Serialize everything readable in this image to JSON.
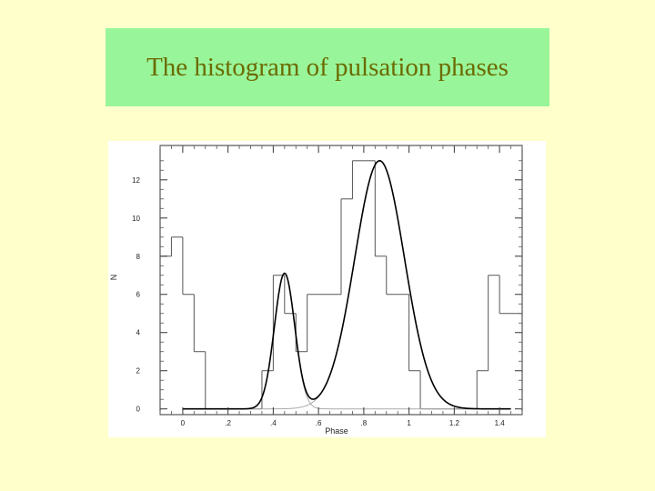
{
  "slide": {
    "title": "The histogram of pulsation phases",
    "title_bg": "#99f59a",
    "title_color": "#6b6b00",
    "background": "#ffffcc"
  },
  "chart_data": {
    "type": "bar",
    "title": "",
    "xlabel": "Phase",
    "ylabel": "N",
    "xlim": [
      -0.1,
      1.5
    ],
    "ylim": [
      -0.3,
      13.8
    ],
    "grid": false,
    "x_tick_values": [
      0,
      0.2,
      0.4,
      0.6,
      0.8,
      1.0,
      1.2,
      1.4
    ],
    "x_tick_labels": [
      "0",
      ".2",
      ".4",
      ".6",
      ".8",
      "1",
      "1.2",
      "1.4"
    ],
    "y_tick_values": [
      0,
      2,
      4,
      6,
      8,
      10,
      12
    ],
    "y_tick_labels": [
      "0",
      "2",
      "4",
      "6",
      "8",
      "10",
      "12"
    ],
    "histogram": {
      "bin_edges": [
        -0.1,
        -0.05,
        0.0,
        0.05,
        0.1,
        0.15,
        0.2,
        0.25,
        0.3,
        0.35,
        0.4,
        0.45,
        0.5,
        0.55,
        0.6,
        0.65,
        0.7,
        0.75,
        0.8,
        0.85,
        0.9,
        0.95,
        1.0,
        1.05,
        1.1,
        1.15,
        1.2,
        1.25,
        1.3,
        1.35,
        1.4,
        1.45,
        1.5
      ],
      "counts": [
        8,
        9,
        6,
        3,
        0,
        0,
        0,
        0,
        0,
        2,
        7,
        5,
        3,
        6,
        6,
        6,
        11,
        13,
        13,
        8,
        6,
        6,
        2,
        0,
        0,
        0,
        0,
        0,
        2,
        7,
        5,
        5
      ]
    },
    "fit_components": [
      {
        "amplitude": 7.1,
        "center": 0.45,
        "sigma": 0.045
      },
      {
        "amplitude": 13.0,
        "center": 0.87,
        "sigma": 0.11
      }
    ],
    "colors": {
      "histogram": "#555555",
      "fit_total": "#000000",
      "fit_component": "#aaaaaa"
    }
  }
}
